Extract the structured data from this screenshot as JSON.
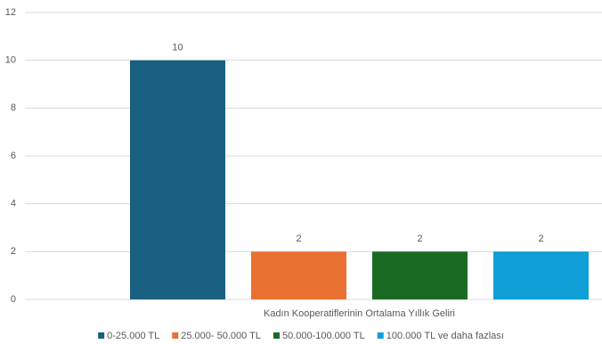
{
  "chart_data": {
    "type": "bar",
    "categories": [
      "Kadın Kooperatiflerinin Ortalama Yıllık Geliri"
    ],
    "series": [
      {
        "name": "0-25.000 TL",
        "color": "#185f80",
        "values": [
          10
        ]
      },
      {
        "name": "25.000- 50.000 TL",
        "color": "#e97132",
        "values": [
          2
        ]
      },
      {
        "name": "50.000-100.000 TL",
        "color": "#196b24",
        "values": [
          2
        ]
      },
      {
        "name": "100.000 TL ve daha fazlası",
        "color": "#0f9ed5",
        "values": [
          2
        ]
      }
    ],
    "ylim": [
      0,
      12
    ],
    "yticks": [
      0,
      2,
      4,
      6,
      8,
      10,
      12
    ],
    "grid": true,
    "legend": "bottom"
  }
}
